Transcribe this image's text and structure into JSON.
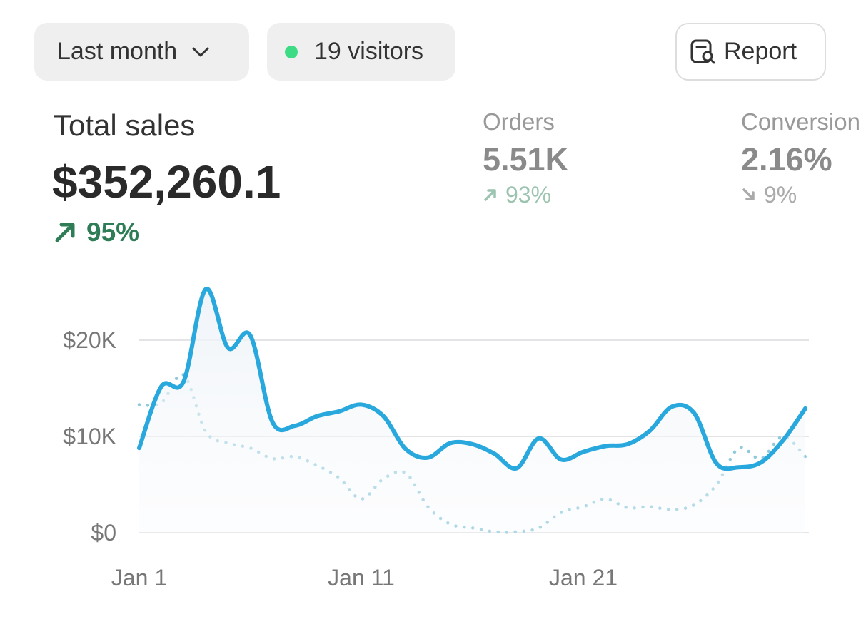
{
  "toolbar": {
    "period": "Last month",
    "visitors": "19 visitors",
    "report": "Report"
  },
  "metrics": [
    {
      "label": "Total sales",
      "value": "$352,260.1",
      "change": "95%",
      "trend": "up",
      "color": "#2e7d56"
    },
    {
      "label": "Orders",
      "value": "5.51K",
      "change": "93%",
      "trend": "up",
      "color": "#9cc4b0"
    },
    {
      "label": "Conversion",
      "value": "2.16%",
      "change": "9%",
      "trend": "down",
      "color": "#aaaaaa"
    }
  ],
  "chart_data": {
    "type": "line",
    "categories": [
      "Jan 1",
      null,
      null,
      null,
      null,
      null,
      null,
      null,
      null,
      null,
      "Jan 11",
      null,
      null,
      null,
      null,
      null,
      null,
      null,
      null,
      null,
      "Jan 21",
      null,
      null,
      null,
      null,
      null,
      null,
      null,
      null,
      null,
      null
    ],
    "series": [
      {
        "color": "#29a8dd",
        "style": "solid",
        "area": true,
        "values": [
          8800,
          15200,
          15700,
          25300,
          19200,
          20500,
          11500,
          11100,
          12100,
          12600,
          13300,
          12100,
          8700,
          7800,
          9300,
          9200,
          8200,
          6700,
          9800,
          7600,
          8400,
          9000,
          9200,
          10600,
          13100,
          12400,
          7200,
          6800,
          7300,
          9600,
          12900
        ]
      },
      {
        "color": "#8ec9dc",
        "style": "dotted",
        "area": false,
        "values": [
          13300,
          13500,
          16400,
          10500,
          9300,
          8800,
          7700,
          7900,
          7000,
          5700,
          3500,
          5600,
          6200,
          2700,
          900,
          500,
          100,
          100,
          500,
          2100,
          2700,
          3500,
          2600,
          2700,
          2400,
          2900,
          5000,
          8800,
          7700,
          10000,
          7900
        ]
      }
    ],
    "ylim": [
      0,
      26000
    ],
    "yticks": [
      {
        "value": 0,
        "label": "$0"
      },
      {
        "value": 10000,
        "label": "$10K"
      },
      {
        "value": 20000,
        "label": "$20K"
      }
    ],
    "grid": true
  }
}
